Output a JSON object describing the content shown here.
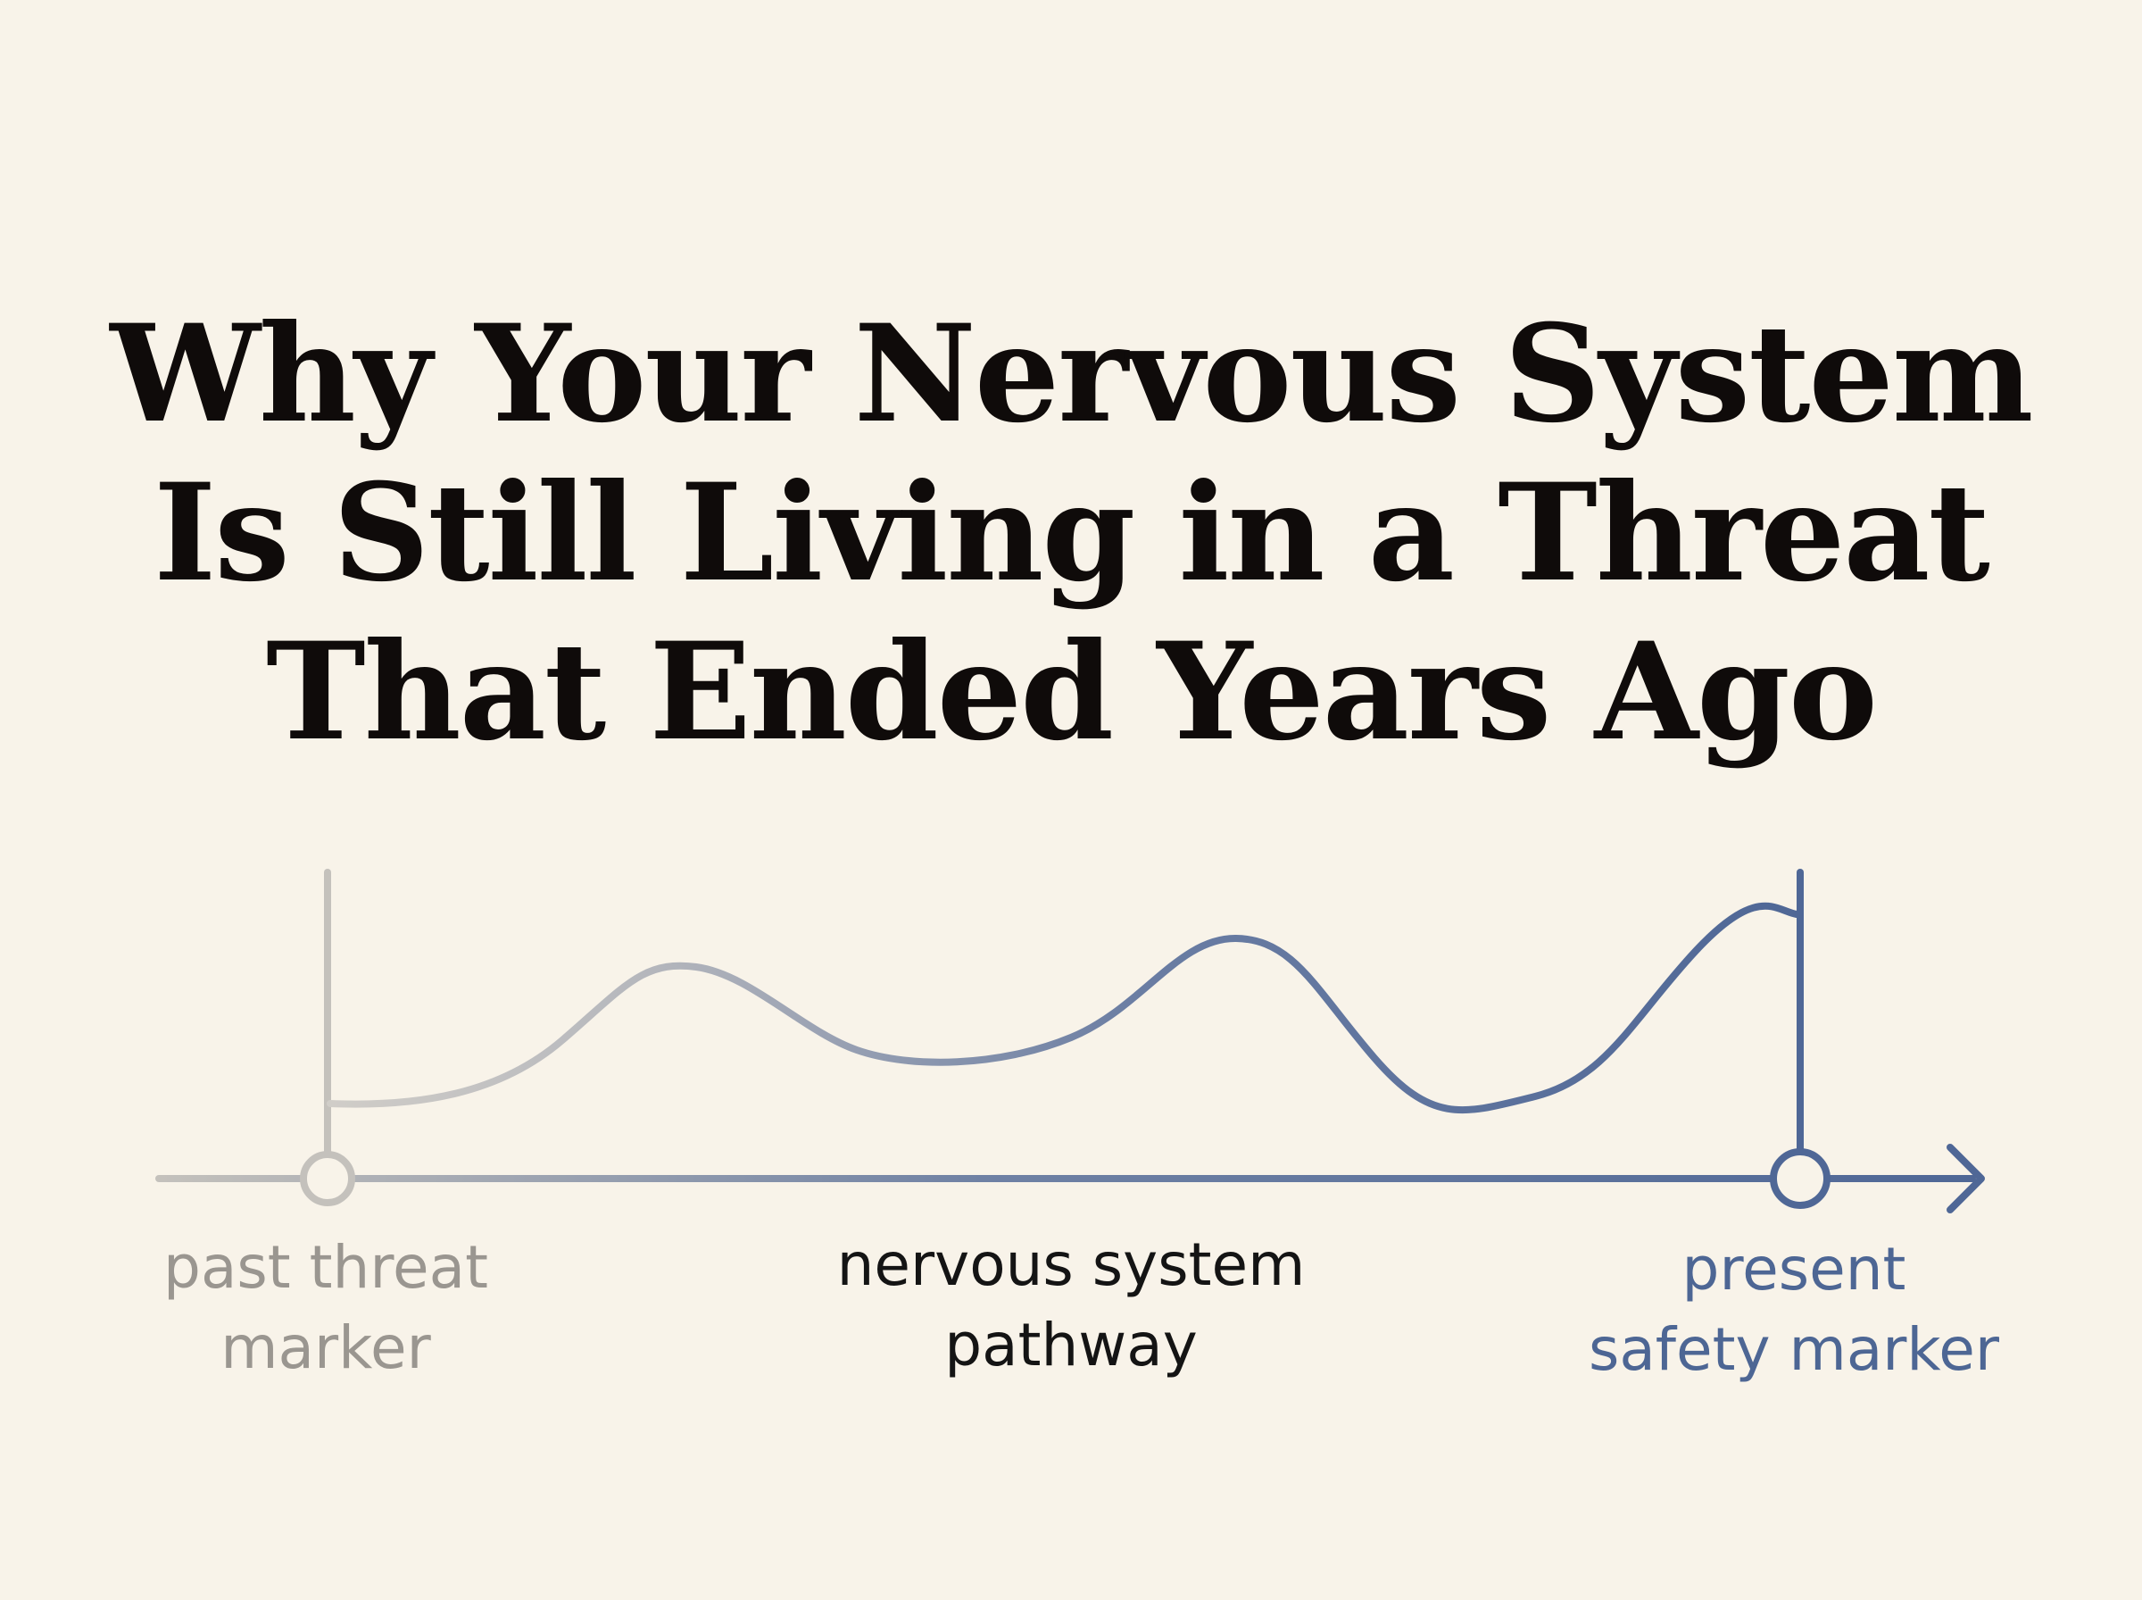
{
  "title": {
    "lines": [
      "Why Your Nervous System",
      "Is Still Living in a Threat",
      "That Ended Years Ago"
    ]
  },
  "labels": {
    "past": [
      "past threat",
      "marker"
    ],
    "pathway": [
      "nervous system",
      "pathway"
    ],
    "present": [
      "present",
      "safety marker"
    ]
  },
  "colors": {
    "background": "#f8f3e9",
    "past": "#c4c1bc",
    "present": "#4f6796",
    "title": "#0f0b0a"
  }
}
